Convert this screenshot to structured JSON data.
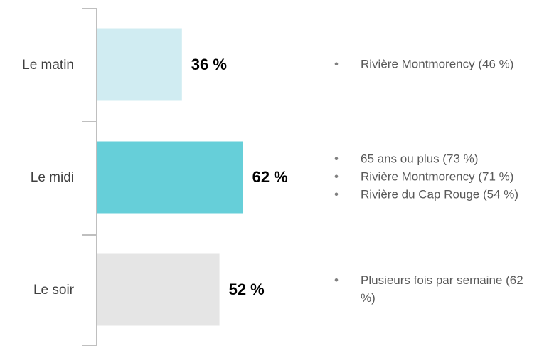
{
  "chart_data": {
    "type": "bar",
    "orientation": "horizontal",
    "categories": [
      "Le matin",
      "Le midi",
      "Le soir"
    ],
    "values": [
      36,
      62,
      52
    ],
    "value_labels": [
      "36 %",
      "62 %",
      "52 %"
    ],
    "colors": [
      "#d0ecf2",
      "#66cfd9",
      "#e5e5e5"
    ],
    "annotations": [
      [
        "Rivière Montmorency (46 %)"
      ],
      [
        "65 ans ou plus (73 %)",
        "Rivière Montmorency (71 %)",
        "Rivière du Cap Rouge (54 %)"
      ],
      [
        "Plusieurs fois par semaine (62 %)"
      ]
    ]
  }
}
